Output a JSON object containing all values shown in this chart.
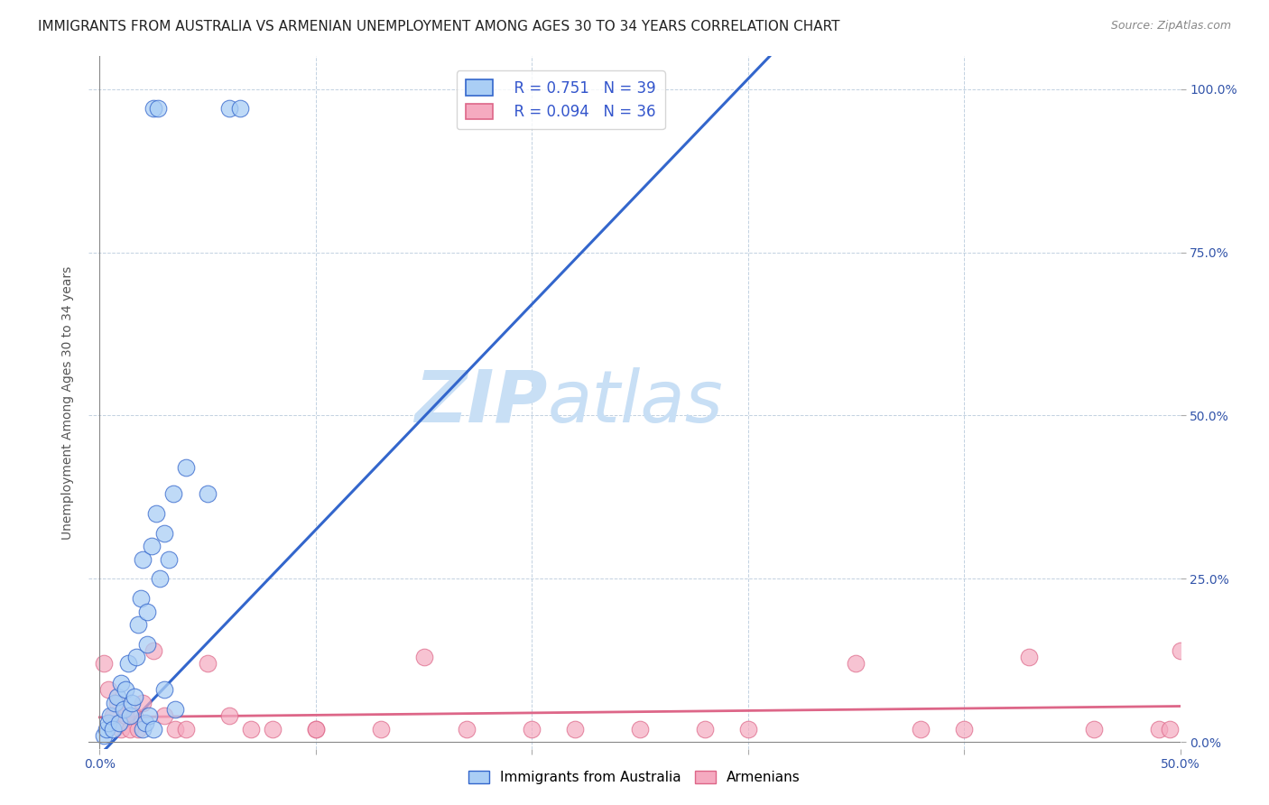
{
  "title": "IMMIGRANTS FROM AUSTRALIA VS ARMENIAN UNEMPLOYMENT AMONG AGES 30 TO 34 YEARS CORRELATION CHART",
  "source": "Source: ZipAtlas.com",
  "ylabel": "Unemployment Among Ages 30 to 34 years",
  "x_ticks": [
    0.0,
    0.1,
    0.2,
    0.3,
    0.4,
    0.5
  ],
  "x_tick_labels": [
    "0.0%",
    "",
    "",
    "",
    "",
    "50.0%"
  ],
  "y_ticks": [
    0.0,
    0.25,
    0.5,
    0.75,
    1.0
  ],
  "y_tick_labels_right": [
    "0.0%",
    "25.0%",
    "50.0%",
    "75.0%",
    "100.0%"
  ],
  "xlim": [
    -0.005,
    0.5
  ],
  "ylim": [
    -0.01,
    1.05
  ],
  "legend_r1": "R = 0.751",
  "legend_n1": "N = 39",
  "legend_r2": "R = 0.094",
  "legend_n2": "N = 36",
  "color_blue": "#aacef5",
  "color_pink": "#f5aac0",
  "trend_blue": "#3366cc",
  "trend_pink": "#dd6688",
  "watermark_zip": "ZIP",
  "watermark_atlas": "atlas",
  "watermark_color_zip": "#c8dff5",
  "watermark_color_atlas": "#c8dff5",
  "blue_trend_x0": 0.0,
  "blue_trend_y0": -0.02,
  "blue_trend_x1": 0.31,
  "blue_trend_y1": 1.05,
  "pink_trend_x0": 0.0,
  "pink_trend_y0": 0.038,
  "pink_trend_x1": 0.5,
  "pink_trend_y1": 0.055,
  "scatter_blue_x": [
    0.002,
    0.003,
    0.004,
    0.005,
    0.006,
    0.007,
    0.008,
    0.009,
    0.01,
    0.011,
    0.012,
    0.013,
    0.014,
    0.015,
    0.016,
    0.017,
    0.018,
    0.019,
    0.02,
    0.022,
    0.024,
    0.026,
    0.028,
    0.03,
    0.032,
    0.034,
    0.04,
    0.05,
    0.06,
    0.065,
    0.025,
    0.027,
    0.022,
    0.03,
    0.035,
    0.02,
    0.021,
    0.023,
    0.025
  ],
  "scatter_blue_y": [
    0.01,
    0.02,
    0.03,
    0.04,
    0.02,
    0.06,
    0.07,
    0.03,
    0.09,
    0.05,
    0.08,
    0.12,
    0.04,
    0.06,
    0.07,
    0.13,
    0.18,
    0.22,
    0.28,
    0.2,
    0.3,
    0.35,
    0.25,
    0.32,
    0.28,
    0.38,
    0.42,
    0.38,
    0.97,
    0.97,
    0.97,
    0.97,
    0.15,
    0.08,
    0.05,
    0.02,
    0.03,
    0.04,
    0.02
  ],
  "scatter_pink_x": [
    0.002,
    0.004,
    0.006,
    0.008,
    0.01,
    0.012,
    0.014,
    0.016,
    0.018,
    0.02,
    0.025,
    0.03,
    0.035,
    0.04,
    0.05,
    0.06,
    0.08,
    0.1,
    0.13,
    0.15,
    0.17,
    0.2,
    0.22,
    0.25,
    0.28,
    0.3,
    0.35,
    0.38,
    0.4,
    0.43,
    0.46,
    0.49,
    0.495,
    0.5,
    0.1,
    0.07
  ],
  "scatter_pink_y": [
    0.12,
    0.08,
    0.04,
    0.06,
    0.02,
    0.04,
    0.02,
    0.04,
    0.02,
    0.06,
    0.14,
    0.04,
    0.02,
    0.02,
    0.12,
    0.04,
    0.02,
    0.02,
    0.02,
    0.13,
    0.02,
    0.02,
    0.02,
    0.02,
    0.02,
    0.02,
    0.12,
    0.02,
    0.02,
    0.13,
    0.02,
    0.02,
    0.02,
    0.14,
    0.02,
    0.02
  ],
  "title_fontsize": 11,
  "axis_label_fontsize": 10,
  "tick_fontsize": 10,
  "legend_fontsize": 12
}
